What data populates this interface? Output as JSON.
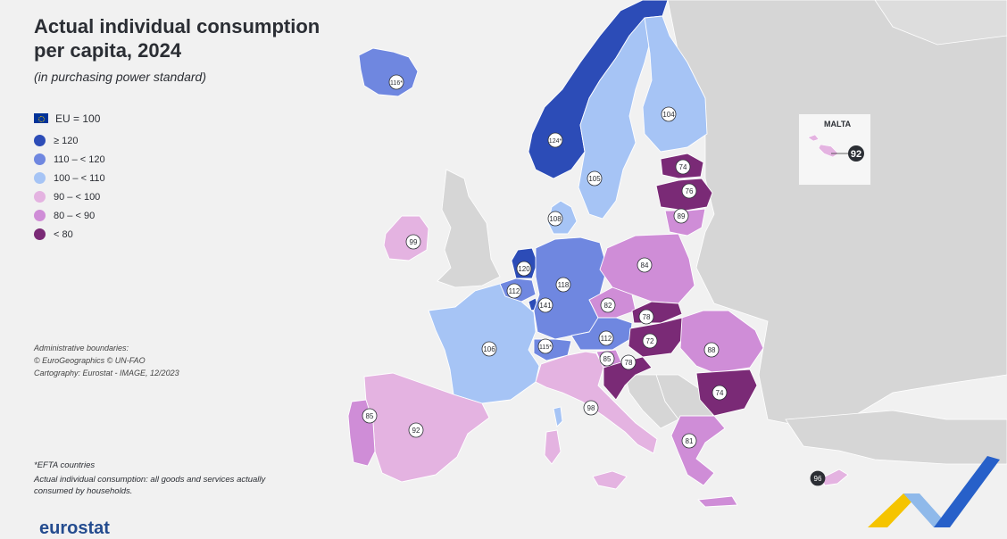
{
  "title_line1": "Actual individual consumption",
  "title_line2": "per capita, 2024",
  "subtitle": "(in purchasing power standard)",
  "legend": {
    "eu_label": "EU = 100",
    "classes": [
      {
        "label": "≥ 120",
        "color": "#2c4cb7"
      },
      {
        "label": "110 – < 120",
        "color": "#6f87e0"
      },
      {
        "label": "100 – < 110",
        "color": "#a6c4f5"
      },
      {
        "label": "90 – < 100",
        "color": "#e4b3e1"
      },
      {
        "label": "80 – < 90",
        "color": "#cf8dd7"
      },
      {
        "label": "< 80",
        "color": "#7a2a76"
      }
    ]
  },
  "admin_notes": [
    "Administrative boundaries:",
    "© EuroGeographics © UN-FAO",
    "Cartography: Eurostat - IMAGE, 12/2023"
  ],
  "footnote_efta": "*EFTA countries",
  "footnote_definition": "Actual individual consumption: all goods and services actually consumed by households.",
  "logo": "eurostat",
  "malta_inset": {
    "title": "MALTA",
    "value": "92"
  },
  "countries": [
    {
      "name": "Iceland",
      "value": "116*",
      "class": 1
    },
    {
      "name": "Norway",
      "value": "124*",
      "class": 0
    },
    {
      "name": "Sweden",
      "value": "105",
      "class": 2
    },
    {
      "name": "Finland",
      "value": "104",
      "class": 2
    },
    {
      "name": "Estonia",
      "value": "74",
      "class": 5
    },
    {
      "name": "Latvia",
      "value": "76",
      "class": 5
    },
    {
      "name": "Lithuania",
      "value": "89",
      "class": 4
    },
    {
      "name": "Denmark",
      "value": "108",
      "class": 2
    },
    {
      "name": "Ireland",
      "value": "99",
      "class": 3
    },
    {
      "name": "Netherlands",
      "value": "120",
      "class": 0
    },
    {
      "name": "Belgium",
      "value": "112",
      "class": 1
    },
    {
      "name": "Luxembourg",
      "value": "141",
      "class": 0
    },
    {
      "name": "Germany",
      "value": "118",
      "class": 1
    },
    {
      "name": "Poland",
      "value": "84",
      "class": 4
    },
    {
      "name": "Czechia",
      "value": "82",
      "class": 4
    },
    {
      "name": "Slovakia",
      "value": "78",
      "class": 5
    },
    {
      "name": "Austria",
      "value": "112",
      "class": 1
    },
    {
      "name": "Hungary",
      "value": "72",
      "class": 5
    },
    {
      "name": "Slovenia",
      "value": "85",
      "class": 4
    },
    {
      "name": "Croatia",
      "value": "78",
      "class": 5
    },
    {
      "name": "Romania",
      "value": "88",
      "class": 4
    },
    {
      "name": "Bulgaria",
      "value": "74",
      "class": 5
    },
    {
      "name": "France",
      "value": "106",
      "class": 2
    },
    {
      "name": "Switzerland",
      "value": "115*",
      "class": 1
    },
    {
      "name": "Italy",
      "value": "98",
      "class": 3
    },
    {
      "name": "Spain",
      "value": "92",
      "class": 3
    },
    {
      "name": "Portugal",
      "value": "85",
      "class": 4
    },
    {
      "name": "Greece",
      "value": "81",
      "class": 4
    },
    {
      "name": "Cyprus",
      "value": "96",
      "class": 3
    }
  ],
  "colors": {
    "background": "#f1f1f1",
    "land_other": "#d6d6d6",
    "sea": "#f1f1f1"
  }
}
